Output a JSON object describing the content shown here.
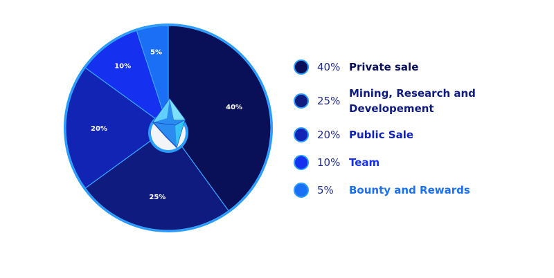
{
  "chart_data": {
    "type": "pie",
    "start_angle": "top, clockwise",
    "slices": [
      {
        "label": "Private sale",
        "value": 40,
        "value_label": "40%",
        "color": "#0a1058"
      },
      {
        "label": "Mining, Research and Developement",
        "value": 25,
        "value_label": "25%",
        "color": "#0f1b7e"
      },
      {
        "label": "Public Sale",
        "value": 20,
        "value_label": "20%",
        "color": "#1224b4"
      },
      {
        "label": "Team",
        "value": 10,
        "value_label": "10%",
        "color": "#1530ee"
      },
      {
        "label": "Bounty and Rewards",
        "value": 5,
        "value_label": "5%",
        "color": "#1a6ff5"
      }
    ],
    "border_color": "#2a9bff",
    "center_icon": "diamond-crystal-logo",
    "legend_position": "right"
  },
  "legend_text_colors": [
    "#0a1058",
    "#0f1b7e",
    "#1224b4",
    "#1530ee",
    "#1a6ff5"
  ]
}
